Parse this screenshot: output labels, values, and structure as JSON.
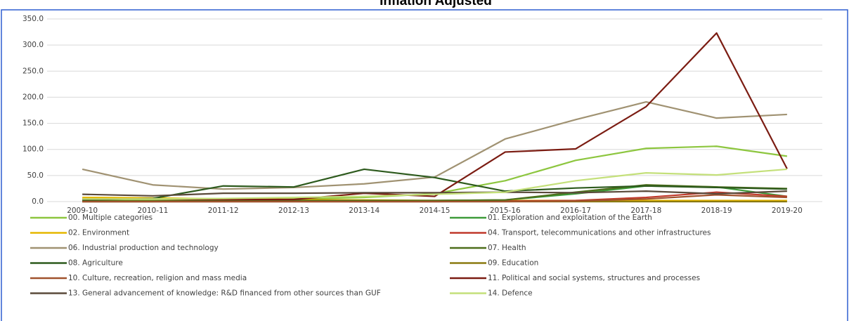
{
  "chart_data": {
    "type": "line",
    "title": "Inflation Adjusted",
    "categories": [
      "2009-10",
      "2010-11",
      "2011-12",
      "2012-13",
      "2013-14",
      "2014-15",
      "2015-16",
      "2016-17",
      "2017-18",
      "2018-19",
      "2019-20"
    ],
    "ylim": [
      0,
      350
    ],
    "yticks": [
      {
        "value": 0,
        "label": "0.0"
      },
      {
        "value": 50,
        "label": "50.0"
      },
      {
        "value": 100,
        "label": "100.0"
      },
      {
        "value": 150,
        "label": "150.0"
      },
      {
        "value": 200,
        "label": "200.0"
      },
      {
        "value": 250,
        "label": "250.0"
      },
      {
        "value": 300,
        "label": "300.0"
      },
      {
        "value": 350,
        "label": "350.0"
      }
    ],
    "grid": true,
    "series": [
      {
        "name": "00. Multiple categories",
        "color": "#8dc63f",
        "values": [
          2,
          3,
          3,
          5,
          8,
          15,
          40,
          79,
          102,
          106,
          87
        ]
      },
      {
        "name": "01. Exploration and exploitation of the Earth",
        "color": "#3e9b3a",
        "values": [
          0,
          0,
          1,
          1,
          1,
          2,
          3,
          15,
          30,
          28,
          10
        ]
      },
      {
        "name": "02. Environment",
        "color": "#e5b700",
        "values": [
          8,
          7,
          5,
          4,
          3,
          2,
          2,
          2,
          2,
          2,
          2
        ]
      },
      {
        "name": "04. Transport, telecommunications and other infrastructures",
        "color": "#c0392b",
        "values": [
          0,
          0,
          0,
          0,
          0,
          0,
          1,
          2,
          8,
          18,
          10
        ]
      },
      {
        "name": "06. Industrial production and technology",
        "color": "#a09272",
        "values": [
          62,
          32,
          24,
          27,
          34,
          47,
          120,
          157,
          191,
          160,
          167
        ]
      },
      {
        "name": "07. Health",
        "color": "#4d6e1b",
        "values": [
          1,
          1,
          2,
          2,
          2,
          2,
          3,
          18,
          32,
          28,
          25
        ]
      },
      {
        "name": "08. Agriculture",
        "color": "#2d5a1d",
        "values": [
          3,
          6,
          30,
          28,
          62,
          46,
          20,
          26,
          30,
          27,
          24
        ]
      },
      {
        "name": "09. Education",
        "color": "#8b7a10",
        "values": [
          0,
          0,
          0,
          0,
          0,
          0,
          0,
          0,
          0,
          0,
          0
        ]
      },
      {
        "name": "10. Culture, recreation, religion and mass media",
        "color": "#a0522d",
        "values": [
          0,
          0,
          0,
          0,
          0,
          0,
          0,
          1,
          5,
          13,
          8
        ]
      },
      {
        "name": "11. Political and social systems, structures and processes",
        "color": "#7b1c12",
        "values": [
          5,
          5,
          4,
          4,
          16,
          10,
          95,
          101,
          182,
          323,
          63
        ]
      },
      {
        "name": "13. General advancement of knowledge: R&D financed from other sources than GUF",
        "color": "#5a4a3a",
        "values": [
          14,
          11,
          16,
          16,
          17,
          17,
          18,
          17,
          20,
          15,
          20
        ]
      },
      {
        "name": "14. Defence",
        "color": "#c4e07a",
        "values": [
          5,
          5,
          6,
          8,
          10,
          14,
          18,
          40,
          55,
          51,
          62
        ]
      }
    ]
  }
}
